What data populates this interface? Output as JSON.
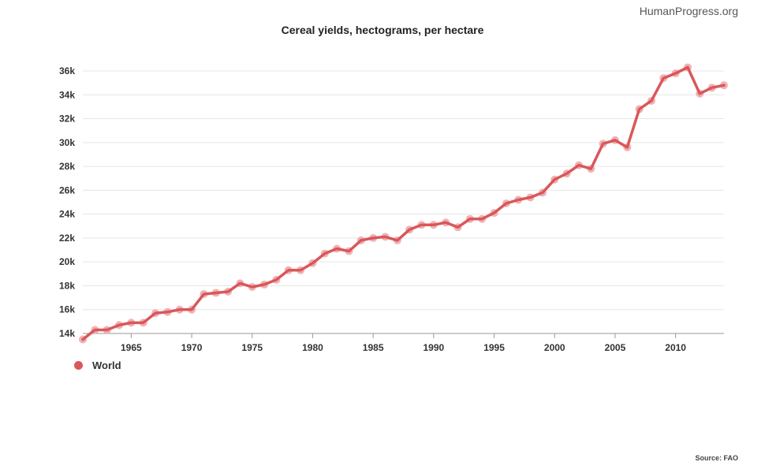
{
  "header": {
    "brand": "HumanProgress.org"
  },
  "footer": {
    "source": "Source: FAO"
  },
  "chart_data": {
    "type": "line",
    "title": "Cereal yields, hectograms, per hectare",
    "xlabel": "",
    "ylabel": "",
    "xlim": [
      1961,
      2014
    ],
    "ylim": [
      14000,
      36000
    ],
    "x_ticks": [
      1965,
      1970,
      1975,
      1980,
      1985,
      1990,
      1995,
      2000,
      2005,
      2010
    ],
    "y_ticks": [
      14000,
      16000,
      18000,
      20000,
      22000,
      24000,
      26000,
      28000,
      30000,
      32000,
      34000,
      36000
    ],
    "y_tick_labels": [
      "14k",
      "16k",
      "18k",
      "20k",
      "22k",
      "24k",
      "26k",
      "28k",
      "30k",
      "32k",
      "34k",
      "36k"
    ],
    "grid": "horizontal",
    "legend_position": "bottom-left",
    "colors": {
      "line": "#d9575b",
      "marker": "#efa3a6",
      "grid": "#e6e6e6",
      "axis": "#999999"
    },
    "series": [
      {
        "name": "World",
        "x": [
          1961,
          1962,
          1963,
          1964,
          1965,
          1966,
          1967,
          1968,
          1969,
          1970,
          1971,
          1972,
          1973,
          1974,
          1975,
          1976,
          1977,
          1978,
          1979,
          1980,
          1981,
          1982,
          1983,
          1984,
          1985,
          1986,
          1987,
          1988,
          1989,
          1990,
          1991,
          1992,
          1993,
          1994,
          1995,
          1996,
          1997,
          1998,
          1999,
          2000,
          2001,
          2002,
          2003,
          2004,
          2005,
          2006,
          2007,
          2008,
          2009,
          2010,
          2011,
          2012,
          2013,
          2014
        ],
        "values": [
          13500,
          14300,
          14300,
          14700,
          14900,
          14900,
          15700,
          15800,
          16000,
          16000,
          17300,
          17400,
          17500,
          18200,
          17900,
          18100,
          18500,
          19300,
          19300,
          19900,
          20700,
          21100,
          20900,
          21800,
          22000,
          22100,
          21800,
          22700,
          23100,
          23100,
          23300,
          22900,
          23600,
          23600,
          24100,
          24900,
          25200,
          25400,
          25800,
          26900,
          27400,
          28100,
          27800,
          29900,
          30200,
          29600,
          32800,
          33500,
          35400,
          35800,
          36300,
          34100,
          34600,
          34800
        ]
      }
    ]
  }
}
